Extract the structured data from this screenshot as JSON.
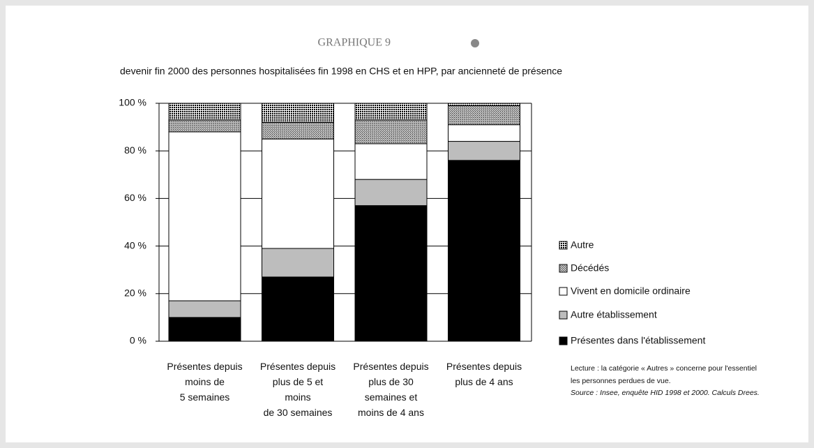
{
  "header": "GRAPHIQUE 9",
  "chart_data": {
    "type": "stacked-bar",
    "title": "devenir fin 2000 des personnes hospitalisées fin 1998 en CHS et en HPP, par ancienneté de présence",
    "categories": [
      [
        "Présentes depuis",
        "moins de",
        "5 semaines"
      ],
      [
        "Présentes depuis",
        "plus de 5 et",
        "moins",
        "de 30 semaines"
      ],
      [
        "Présentes depuis",
        "plus de 30",
        "semaines et",
        "moins de 4 ans"
      ],
      [
        "Présentes depuis",
        "plus de 4 ans"
      ]
    ],
    "series": [
      {
        "name": "Présentes dans l'établissement",
        "color": "#000000",
        "values": [
          10,
          27,
          57,
          76
        ]
      },
      {
        "name": "Autre établissement",
        "color": "#bdbdbd",
        "values": [
          7,
          12,
          11,
          8
        ]
      },
      {
        "name": "Vivent en domicile ordinaire",
        "color": "#ffffff",
        "values": [
          71,
          46,
          15,
          7
        ]
      },
      {
        "name": "Décédés",
        "color": "#8a8a8a",
        "pattern": "hatch",
        "values": [
          5,
          7,
          10,
          8
        ]
      },
      {
        "name": "Autre",
        "color": "#222222",
        "pattern": "dots",
        "values": [
          7,
          8,
          7,
          1
        ]
      }
    ],
    "ylim": [
      0,
      100
    ],
    "yticks": [
      {
        "value": 0,
        "label": "0 %"
      },
      {
        "value": 20,
        "label": "20 %"
      },
      {
        "value": 40,
        "label": "40 %"
      },
      {
        "value": 60,
        "label": "60 %"
      },
      {
        "value": 80,
        "label": "80 %"
      },
      {
        "value": 100,
        "label": "100 %"
      }
    ],
    "grid": true,
    "notes": [
      "Lecture : la catégorie « Autres » concerne pour l'essentiel",
      "les personnes perdues de vue."
    ],
    "source": "Source : Insee, enquête HID 1998 et 2000. Calculs Drees."
  }
}
